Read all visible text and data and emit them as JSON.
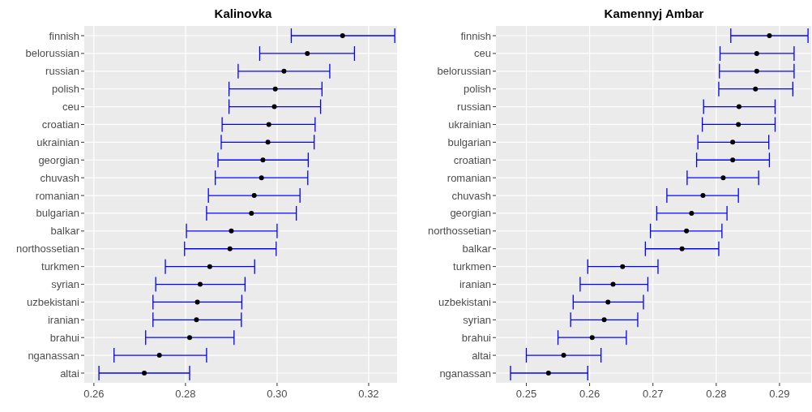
{
  "chart_data": [
    {
      "type": "scatter",
      "title": "Kalinovka",
      "orientation": "horizontal",
      "color": "#000000",
      "grid": true,
      "categories": [
        "finnish",
        "belorussian",
        "russian",
        "polish",
        "ceu",
        "croatian",
        "ukrainian",
        "georgian",
        "chuvash",
        "romanian",
        "bulgarian",
        "balkar",
        "northossetian",
        "turkmen",
        "syrian",
        "uzbekistani",
        "iranian",
        "brahui",
        "nganassan",
        "altai"
      ],
      "values": [
        0.3143,
        0.3066,
        0.3015,
        0.2996,
        0.2994,
        0.2982,
        0.298,
        0.2969,
        0.2966,
        0.295,
        0.2944,
        0.29,
        0.2897,
        0.2853,
        0.2832,
        0.2826,
        0.2824,
        0.2809,
        0.2743,
        0.271
      ],
      "errors": [
        [
          0.3031,
          0.3257
        ],
        [
          0.2962,
          0.3169
        ],
        [
          0.2915,
          0.3115
        ],
        [
          0.2895,
          0.3098
        ],
        [
          0.2895,
          0.3095
        ],
        [
          0.288,
          0.3083
        ],
        [
          0.2878,
          0.3081
        ],
        [
          0.2871,
          0.3068
        ],
        [
          0.2865,
          0.3067
        ],
        [
          0.285,
          0.305
        ],
        [
          0.2846,
          0.3042
        ],
        [
          0.2802,
          0.3
        ],
        [
          0.2798,
          0.2998
        ],
        [
          0.2756,
          0.2951
        ],
        [
          0.2735,
          0.293
        ],
        [
          0.2729,
          0.2923
        ],
        [
          0.2729,
          0.2922
        ],
        [
          0.2713,
          0.2906
        ],
        [
          0.2644,
          0.2846
        ],
        [
          0.2611,
          0.2809
        ]
      ],
      "xlim": [
        0.2579,
        0.3262
      ],
      "xticks": [
        {
          "value": 0.26,
          "label": "0.26"
        },
        {
          "value": 0.28,
          "label": "0.28"
        },
        {
          "value": 0.3,
          "label": "0.30"
        },
        {
          "value": 0.32,
          "label": "0.32"
        }
      ]
    },
    {
      "type": "scatter",
      "title": "Kamennyj Ambar",
      "orientation": "horizontal",
      "color": "#000000",
      "grid": true,
      "categories": [
        "finnish",
        "ceu",
        "belorussian",
        "polish",
        "russian",
        "ukrainian",
        "bulgarian",
        "croatian",
        "romanian",
        "chuvash",
        "georgian",
        "northossetian",
        "balkar",
        "turkmen",
        "iranian",
        "uzbekistani",
        "syrian",
        "brahui",
        "altai",
        "nganassan"
      ],
      "values": [
        0.2884,
        0.2864,
        0.2864,
        0.2862,
        0.2836,
        0.2835,
        0.2826,
        0.2826,
        0.2811,
        0.2779,
        0.2761,
        0.2753,
        0.2746,
        0.2652,
        0.2637,
        0.2629,
        0.2623,
        0.2604,
        0.2559,
        0.2535
      ],
      "errors": [
        [
          0.2823,
          0.2945
        ],
        [
          0.2806,
          0.2923
        ],
        [
          0.2805,
          0.2923
        ],
        [
          0.2804,
          0.2921
        ],
        [
          0.278,
          0.2893
        ],
        [
          0.2778,
          0.2893
        ],
        [
          0.2771,
          0.2883
        ],
        [
          0.2769,
          0.2884
        ],
        [
          0.2754,
          0.2867
        ],
        [
          0.2722,
          0.2835
        ],
        [
          0.2706,
          0.2817
        ],
        [
          0.2696,
          0.2809
        ],
        [
          0.2688,
          0.2804
        ],
        [
          0.2597,
          0.2708
        ],
        [
          0.2585,
          0.2692
        ],
        [
          0.2574,
          0.2685
        ],
        [
          0.257,
          0.2676
        ],
        [
          0.255,
          0.2658
        ],
        [
          0.25,
          0.2618
        ],
        [
          0.2475,
          0.2597
        ]
      ],
      "xlim": [
        0.2452,
        0.295
      ],
      "xticks": [
        0.25,
        0.26,
        0.27,
        0.28,
        0.29
      ]
    }
  ]
}
